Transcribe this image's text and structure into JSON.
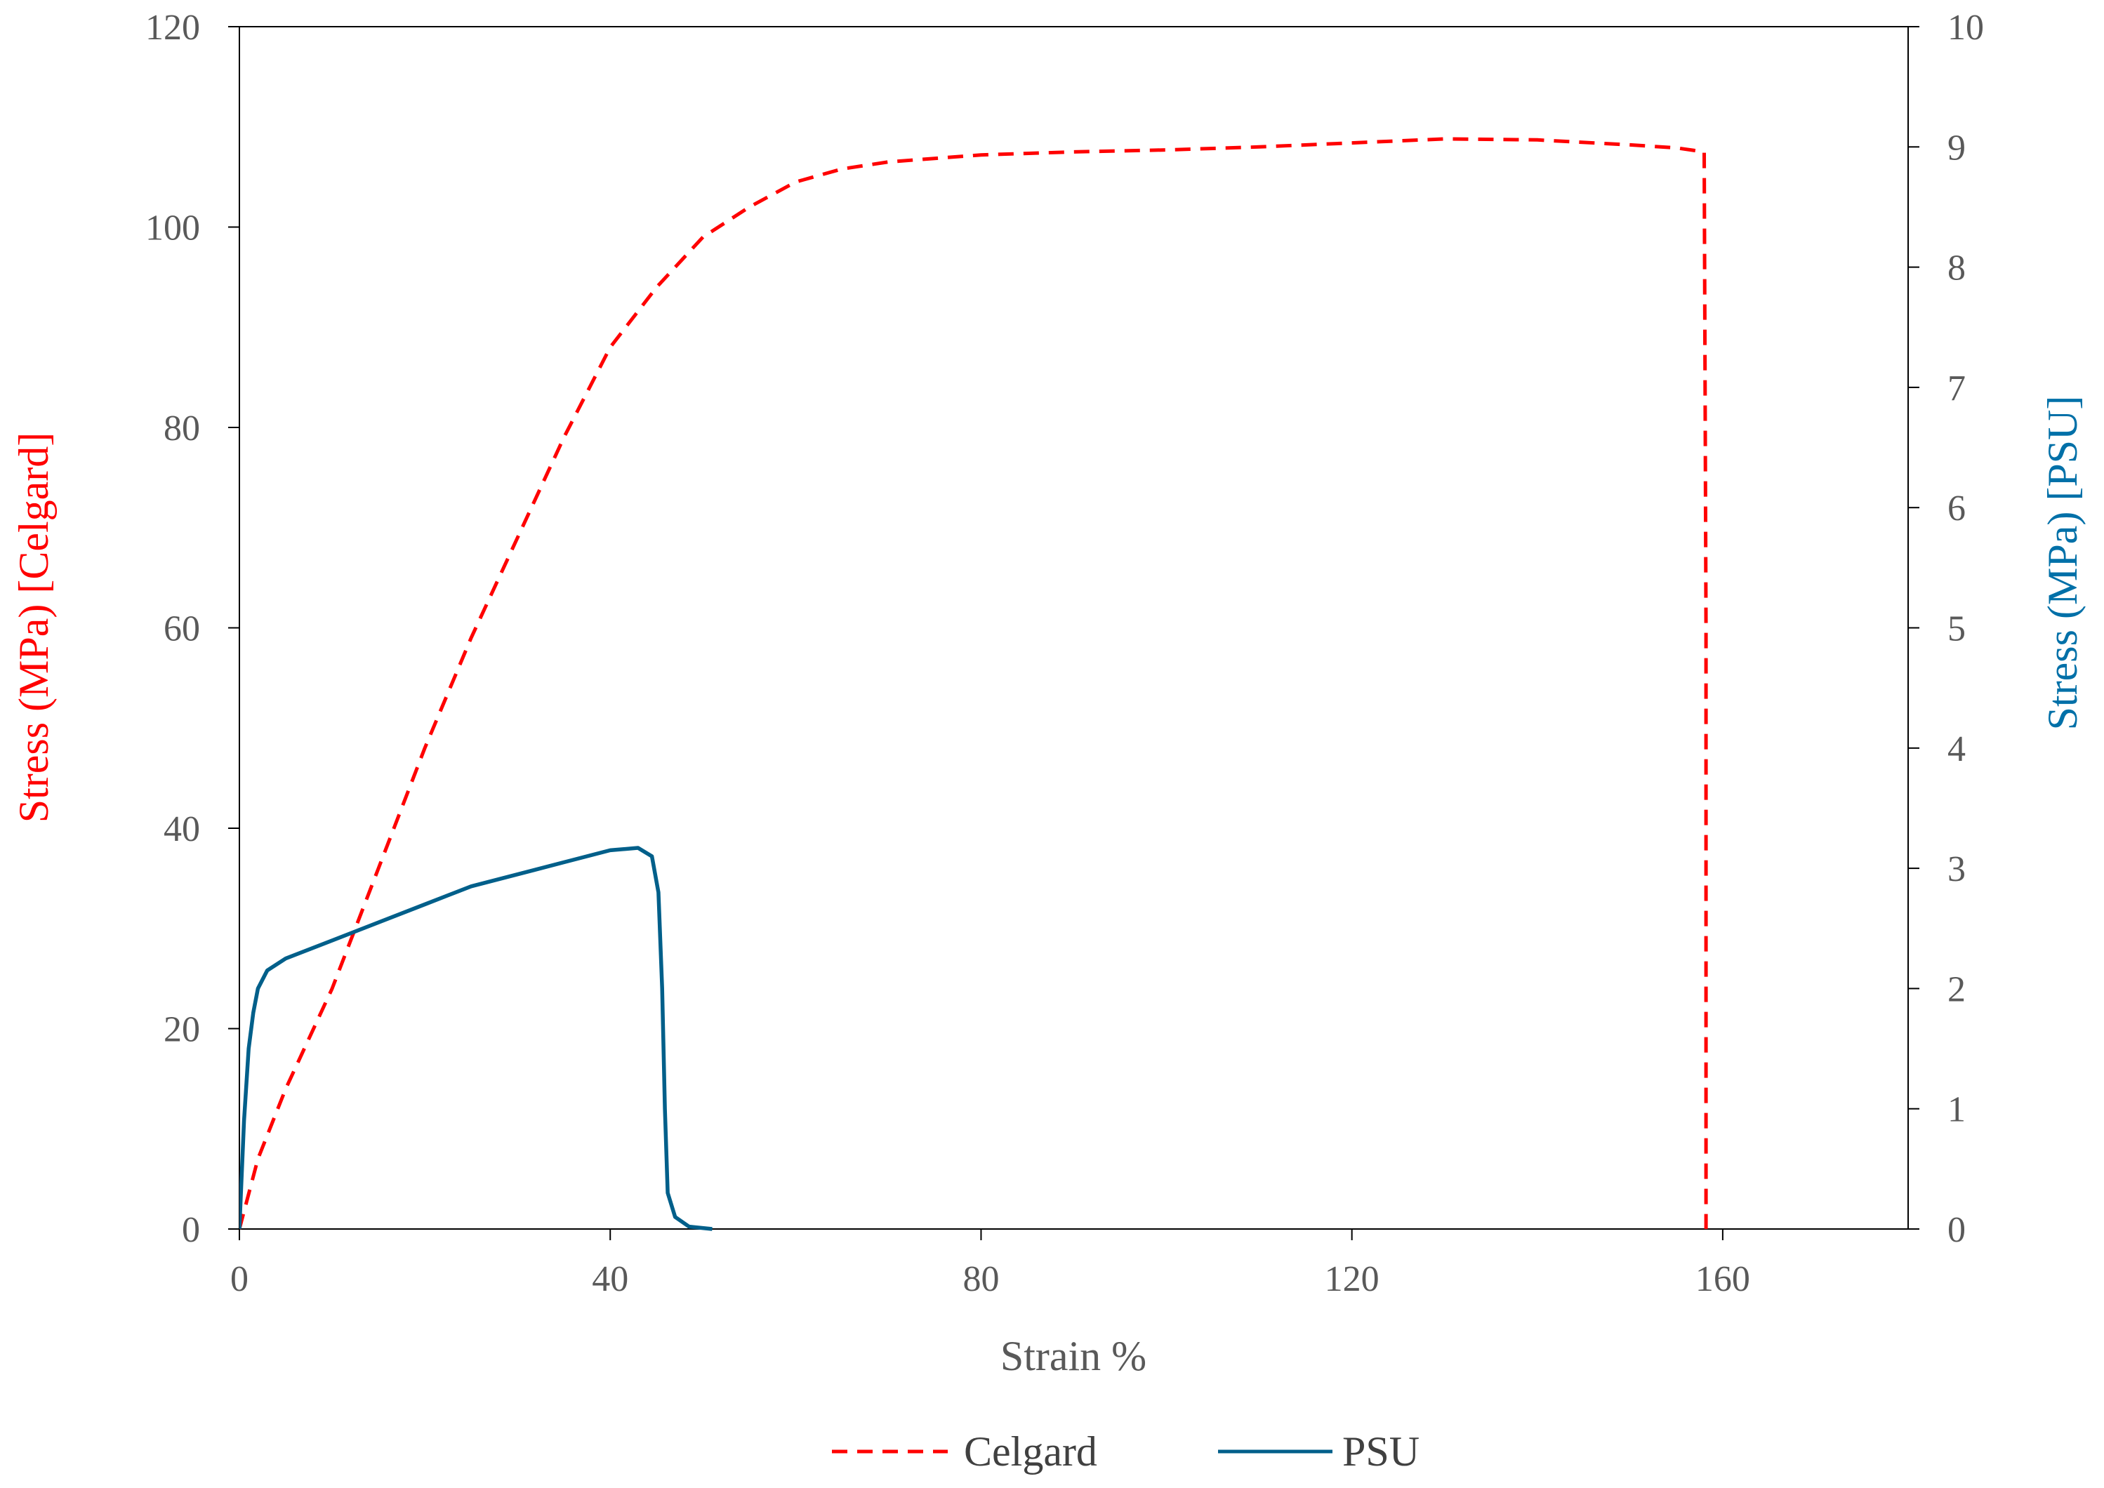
{
  "chart_data": {
    "type": "line",
    "xlabel": "Strain %",
    "ylabel_left": "Stress (MPa)  [Celgard]",
    "ylabel_right": "Stress (MPa)  [PSU]",
    "xlim": [
      0,
      180
    ],
    "ylim_left": [
      0,
      120
    ],
    "ylim_right": [
      0,
      10
    ],
    "x_ticks": [
      0,
      40,
      80,
      120,
      160
    ],
    "y_ticks_left": [
      0,
      20,
      40,
      60,
      80,
      100,
      120
    ],
    "y_ticks_right": [
      0,
      1,
      2,
      3,
      4,
      5,
      6,
      7,
      8,
      9,
      10
    ],
    "grid": false,
    "legend_position": "bottom",
    "colors": {
      "Celgard": "#ff0000",
      "PSU": "#005f8a",
      "left_axis_title": "#ff0000",
      "right_axis_title": "#0070a8"
    },
    "series": [
      {
        "name": "Celgard",
        "axis": "left",
        "style": "dashed",
        "points": [
          [
            0,
            0
          ],
          [
            2,
            7
          ],
          [
            5,
            14
          ],
          [
            10,
            24
          ],
          [
            15,
            36
          ],
          [
            20,
            48
          ],
          [
            25,
            59
          ],
          [
            30,
            69
          ],
          [
            35,
            79
          ],
          [
            40,
            88
          ],
          [
            45,
            94
          ],
          [
            50,
            99
          ],
          [
            55,
            102
          ],
          [
            60,
            104.5
          ],
          [
            65,
            105.8
          ],
          [
            70,
            106.5
          ],
          [
            80,
            107.2
          ],
          [
            90,
            107.5
          ],
          [
            100,
            107.7
          ],
          [
            110,
            108
          ],
          [
            120,
            108.4
          ],
          [
            130,
            108.8
          ],
          [
            140,
            108.7
          ],
          [
            150,
            108.2
          ],
          [
            155,
            107.9
          ],
          [
            158,
            107.5
          ],
          [
            158.2,
            60
          ],
          [
            158.2,
            0
          ]
        ]
      },
      {
        "name": "PSU",
        "axis": "right",
        "style": "solid",
        "points": [
          [
            0,
            0
          ],
          [
            0.5,
            0.9
          ],
          [
            1,
            1.5
          ],
          [
            1.5,
            1.8
          ],
          [
            2,
            2.0
          ],
          [
            3,
            2.15
          ],
          [
            5,
            2.25
          ],
          [
            10,
            2.4
          ],
          [
            15,
            2.55
          ],
          [
            20,
            2.7
          ],
          [
            25,
            2.85
          ],
          [
            30,
            2.95
          ],
          [
            35,
            3.05
          ],
          [
            40,
            3.15
          ],
          [
            43,
            3.17
          ],
          [
            44.5,
            3.1
          ],
          [
            45.2,
            2.8
          ],
          [
            45.6,
            2.0
          ],
          [
            45.9,
            1.0
          ],
          [
            46.2,
            0.3
          ],
          [
            47,
            0.1
          ],
          [
            48.5,
            0.02
          ],
          [
            51,
            0
          ]
        ]
      }
    ]
  }
}
